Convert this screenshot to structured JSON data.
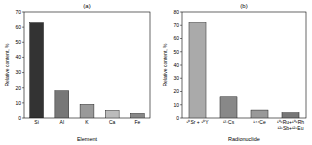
{
  "chart_data": [
    {
      "type": "bar",
      "title": "(a)",
      "x_label": "Element",
      "y_label": "Relative content, %",
      "categories": [
        "Si",
        "Al",
        "K",
        "Ca",
        "Fe"
      ],
      "values": [
        63,
        18,
        9,
        5,
        3
      ],
      "colors": [
        "#333333",
        "#777777",
        "#999999",
        "#bbbbbb",
        "#888888"
      ],
      "ylim": [
        0,
        70
      ],
      "yticks": [
        0,
        10,
        20,
        30,
        40,
        50,
        60,
        70
      ],
      "grid": false
    },
    {
      "type": "bar",
      "title": "(b)",
      "x_label": "Radionuclide",
      "y_label": "Relative content, %",
      "categories": [
        "⁹⁰Sr + ⁹⁰Y",
        "¹³⁷Cs",
        "¹⁴⁴Ce",
        "¹⁰⁶Ru+¹⁰⁶Rh\n¹²⁵Sb+¹²⁵Eu"
      ],
      "values": [
        72,
        16,
        6,
        4
      ],
      "colors": [
        "#aaaaaa",
        "#888888",
        "#999999",
        "#777777"
      ],
      "ylim": [
        0,
        80
      ],
      "yticks": [
        0,
        10,
        20,
        30,
        40,
        50,
        60,
        70,
        80
      ],
      "grid": false
    }
  ]
}
